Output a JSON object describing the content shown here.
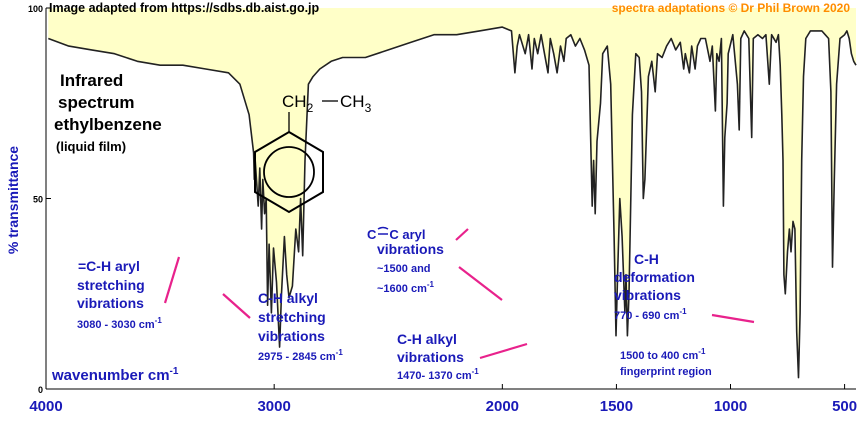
{
  "header": {
    "source": "Image adapted from https://sdbs.db.aist.go.jp",
    "credit": "spectra adaptations © Dr Phil Brown 2020"
  },
  "colors": {
    "spectrum_line": "#222222",
    "fill": "#ffffc8",
    "annotation_text": "#1a1ab8",
    "pointer": "#e8228c",
    "axis_label": "#1a1ab8",
    "credit": "#ff8c00"
  },
  "title": {
    "line1": "Infrared",
    "line2": "spectrum",
    "line3": "ethylbenzene",
    "line4": "(liquid film)"
  },
  "structure": {
    "group1": "CH",
    "sub1": "2",
    "group2": "CH",
    "sub2": "3"
  },
  "annotations": {
    "aryl_ch": {
      "line1": "=C-H aryl",
      "line2": "stretching",
      "line3": "vibrations",
      "range": "3080 - 3030 cm",
      "sup": "-1"
    },
    "alkyl_stretch": {
      "line1": "C-H alkyl",
      "line2": "stretching",
      "line3": "vibrations",
      "range": "2975 - 2845 cm",
      "sup": "-1"
    },
    "aryl_cc": {
      "atom1": "C",
      "atom2": "C",
      "suffix": " aryl",
      "line2": "vibrations",
      "line3": "~1500 and",
      "line4": "~1600 cm",
      "sup": "-1"
    },
    "alkyl_vib": {
      "line1": "C-H alkyl",
      "line2": "vibrations",
      "range": "1470- 1370 cm",
      "sup": "-1"
    },
    "deformation": {
      "line1": "C-H",
      "line2": "deformation",
      "line3": "vibrations",
      "range": "770 - 690 cm",
      "sup": "-1"
    },
    "fingerprint": {
      "line1": "1500 to 400 cm",
      "sup": "-1",
      "line2": "fingerprint region"
    }
  },
  "chart_data": {
    "type": "line",
    "xlabel": "wavenumber  cm",
    "xlabel_sup": "-1",
    "ylabel": "% transmittance",
    "xlim": [
      4000,
      450
    ],
    "ylim": [
      0,
      100
    ],
    "x_ticks": [
      "4000",
      "3000",
      "2000",
      "1500",
      "1000",
      "500"
    ],
    "x_tick_values": [
      4000,
      3000,
      2000,
      1500,
      1000,
      500
    ],
    "y_ticks": [
      "100",
      "50",
      "0"
    ],
    "y_tick_values": [
      100,
      50,
      0
    ],
    "series": [
      {
        "points": [
          [
            3990,
            92
          ],
          [
            3900,
            90
          ],
          [
            3800,
            89
          ],
          [
            3700,
            88
          ],
          [
            3600,
            86
          ],
          [
            3500,
            85
          ],
          [
            3400,
            85
          ],
          [
            3300,
            84
          ],
          [
            3200,
            83
          ],
          [
            3150,
            80
          ],
          [
            3110,
            72
          ],
          [
            3090,
            62
          ],
          [
            3087,
            55
          ],
          [
            3083,
            60
          ],
          [
            3070,
            48
          ],
          [
            3063,
            58
          ],
          [
            3055,
            42
          ],
          [
            3050,
            55
          ],
          [
            3042,
            46
          ],
          [
            3035,
            50
          ],
          [
            3029,
            22
          ],
          [
            3022,
            38
          ],
          [
            3012,
            20
          ],
          [
            3003,
            37
          ],
          [
            2990,
            28
          ],
          [
            2976,
            11
          ],
          [
            2968,
            25
          ],
          [
            2955,
            40
          ],
          [
            2945,
            30
          ],
          [
            2935,
            24
          ],
          [
            2920,
            27
          ],
          [
            2905,
            42
          ],
          [
            2893,
            36
          ],
          [
            2884,
            50
          ],
          [
            2875,
            35
          ],
          [
            2865,
            60
          ],
          [
            2850,
            80
          ],
          [
            2830,
            82
          ],
          [
            2800,
            84
          ],
          [
            2750,
            86
          ],
          [
            2700,
            87
          ],
          [
            2600,
            87
          ],
          [
            2500,
            89
          ],
          [
            2400,
            91
          ],
          [
            2300,
            93
          ],
          [
            2200,
            93
          ],
          [
            2100,
            94
          ],
          [
            2000,
            95
          ],
          [
            1960,
            94
          ],
          [
            1945,
            83
          ],
          [
            1935,
            90
          ],
          [
            1925,
            93
          ],
          [
            1900,
            88
          ],
          [
            1885,
            93
          ],
          [
            1870,
            84
          ],
          [
            1860,
            92
          ],
          [
            1845,
            88
          ],
          [
            1830,
            93
          ],
          [
            1815,
            88
          ],
          [
            1800,
            83
          ],
          [
            1790,
            92
          ],
          [
            1775,
            88
          ],
          [
            1760,
            83
          ],
          [
            1745,
            90
          ],
          [
            1730,
            86
          ],
          [
            1720,
            92
          ],
          [
            1700,
            93
          ],
          [
            1680,
            90
          ],
          [
            1660,
            92
          ],
          [
            1640,
            89
          ],
          [
            1620,
            85
          ],
          [
            1606,
            48
          ],
          [
            1600,
            60
          ],
          [
            1593,
            46
          ],
          [
            1585,
            65
          ],
          [
            1570,
            75
          ],
          [
            1560,
            88
          ],
          [
            1540,
            90
          ],
          [
            1525,
            80
          ],
          [
            1510,
            40
          ],
          [
            1502,
            14
          ],
          [
            1495,
            30
          ],
          [
            1485,
            50
          ],
          [
            1475,
            40
          ],
          [
            1463,
            20
          ],
          [
            1458,
            30
          ],
          [
            1452,
            14
          ],
          [
            1445,
            25
          ],
          [
            1430,
            72
          ],
          [
            1415,
            88
          ],
          [
            1400,
            87
          ],
          [
            1390,
            78
          ],
          [
            1382,
            50
          ],
          [
            1375,
            55
          ],
          [
            1360,
            82
          ],
          [
            1345,
            86
          ],
          [
            1330,
            78
          ],
          [
            1320,
            88
          ],
          [
            1300,
            87
          ],
          [
            1280,
            90
          ],
          [
            1260,
            92
          ],
          [
            1240,
            89
          ],
          [
            1220,
            91
          ],
          [
            1205,
            84
          ],
          [
            1198,
            88
          ],
          [
            1180,
            83
          ],
          [
            1170,
            90
          ],
          [
            1155,
            84
          ],
          [
            1145,
            90
          ],
          [
            1130,
            92
          ],
          [
            1110,
            92
          ],
          [
            1090,
            86
          ],
          [
            1080,
            90
          ],
          [
            1066,
            73
          ],
          [
            1060,
            88
          ],
          [
            1050,
            86
          ],
          [
            1040,
            92
          ],
          [
            1031,
            48
          ],
          [
            1025,
            66
          ],
          [
            1015,
            75
          ],
          [
            1010,
            88
          ],
          [
            990,
            93
          ],
          [
            970,
            80
          ],
          [
            962,
            68
          ],
          [
            955,
            92
          ],
          [
            940,
            94
          ],
          [
            920,
            92
          ],
          [
            907,
            66
          ],
          [
            900,
            92
          ],
          [
            880,
            93
          ],
          [
            860,
            92
          ],
          [
            845,
            93
          ],
          [
            830,
            80
          ],
          [
            820,
            93
          ],
          [
            800,
            91
          ],
          [
            790,
            93
          ],
          [
            782,
            85
          ],
          [
            775,
            72
          ],
          [
            770,
            60
          ],
          [
            766,
            30
          ],
          [
            760,
            25
          ],
          [
            750,
            36
          ],
          [
            742,
            42
          ],
          [
            735,
            36
          ],
          [
            726,
            44
          ],
          [
            718,
            42
          ],
          [
            710,
            15
          ],
          [
            702,
            3
          ],
          [
            695,
            20
          ],
          [
            688,
            60
          ],
          [
            680,
            82
          ],
          [
            670,
            92
          ],
          [
            650,
            94
          ],
          [
            630,
            94
          ],
          [
            600,
            94
          ],
          [
            585,
            93
          ],
          [
            570,
            92
          ],
          [
            560,
            78
          ],
          [
            553,
            32
          ],
          [
            545,
            55
          ],
          [
            535,
            80
          ],
          [
            520,
            92
          ],
          [
            500,
            93
          ],
          [
            490,
            94
          ],
          [
            480,
            92
          ],
          [
            470,
            88
          ],
          [
            460,
            86
          ],
          [
            450,
            85
          ]
        ]
      }
    ]
  }
}
